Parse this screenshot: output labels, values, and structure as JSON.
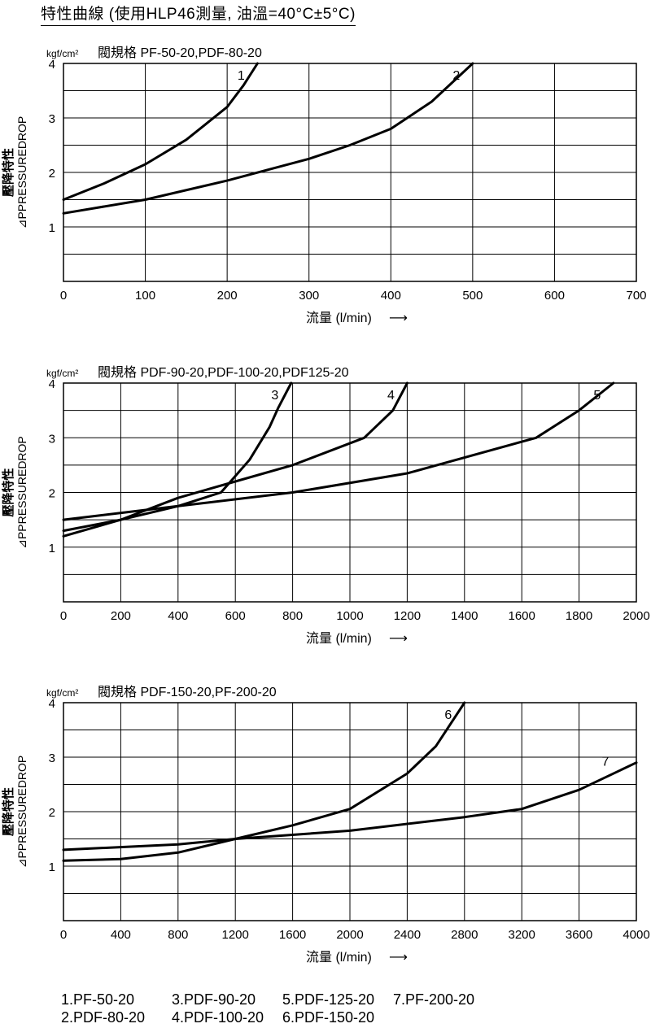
{
  "header": {
    "title": "特性曲線 (使用HLP46測量, 油溫=40°C±5°C)"
  },
  "common": {
    "unit_label": "kgf/cm²",
    "ylabel_line1": "壓降特性",
    "ylabel_line2": "⊿PPRESSUREDROP",
    "xlabel": "流量 (l/min)",
    "xlabel_arrow": "⟶",
    "line_color": "#000000",
    "grid_color": "#000000"
  },
  "chart_data": [
    {
      "type": "line",
      "subtitle": "閥規格 PF-50-20,PDF-80-20",
      "xlim": [
        0,
        700
      ],
      "ylim": [
        0,
        4
      ],
      "xticks": [
        0,
        100,
        200,
        300,
        400,
        500,
        600,
        700
      ],
      "yticks": [
        1,
        2,
        3,
        4
      ],
      "grid": true,
      "series": [
        {
          "name": "1",
          "x": [
            0,
            50,
            100,
            150,
            200,
            220,
            237
          ],
          "y": [
            1.5,
            1.8,
            2.15,
            2.6,
            3.2,
            3.6,
            4.0
          ]
        },
        {
          "name": "2",
          "x": [
            0,
            100,
            200,
            300,
            350,
            400,
            450,
            500
          ],
          "y": [
            1.25,
            1.5,
            1.85,
            2.25,
            2.5,
            2.8,
            3.3,
            4.0
          ]
        }
      ]
    },
    {
      "type": "line",
      "subtitle": "閥規格 PDF-90-20,PDF-100-20,PDF125-20",
      "xlim": [
        0,
        2000
      ],
      "ylim": [
        0,
        4
      ],
      "xticks": [
        0,
        200,
        400,
        600,
        800,
        1000,
        1200,
        1400,
        1600,
        1800,
        2000
      ],
      "yticks": [
        1,
        2,
        3,
        4
      ],
      "grid": true,
      "series": [
        {
          "name": "3",
          "x": [
            0,
            200,
            400,
            550,
            650,
            720,
            750,
            795
          ],
          "y": [
            1.2,
            1.5,
            1.75,
            2.0,
            2.6,
            3.2,
            3.55,
            4.0
          ]
        },
        {
          "name": "4",
          "x": [
            0,
            200,
            400,
            600,
            800,
            1050,
            1150,
            1200
          ],
          "y": [
            1.3,
            1.5,
            1.9,
            2.2,
            2.5,
            3.0,
            3.5,
            4.0
          ]
        },
        {
          "name": "5",
          "x": [
            0,
            400,
            800,
            1200,
            1650,
            1800,
            1920
          ],
          "y": [
            1.5,
            1.75,
            2.0,
            2.35,
            3.0,
            3.5,
            4.0
          ]
        }
      ]
    },
    {
      "type": "line",
      "subtitle": "閥規格 PDF-150-20,PF-200-20",
      "xlim": [
        0,
        4000
      ],
      "ylim": [
        0,
        4
      ],
      "xticks": [
        0,
        400,
        800,
        1200,
        1600,
        2000,
        2400,
        2800,
        3200,
        3600,
        4000
      ],
      "yticks": [
        1,
        2,
        3,
        4
      ],
      "grid": true,
      "series": [
        {
          "name": "6",
          "x": [
            0,
            400,
            800,
            1200,
            1600,
            2000,
            2400,
            2600,
            2800
          ],
          "y": [
            1.1,
            1.13,
            1.25,
            1.5,
            1.75,
            2.05,
            2.7,
            3.2,
            4.0
          ]
        },
        {
          "name": "7",
          "x": [
            0,
            800,
            1200,
            2000,
            2800,
            3200,
            3600,
            4000
          ],
          "y": [
            1.3,
            1.4,
            1.5,
            1.65,
            1.9,
            2.05,
            2.4,
            2.9
          ]
        }
      ]
    }
  ],
  "legend": {
    "rows": [
      [
        "1.PF-50-20",
        "3.PDF-90-20",
        "5.PDF-125-20",
        "7.PF-200-20"
      ],
      [
        "2.PDF-80-20",
        "4.PDF-100-20",
        "6.PDF-150-20"
      ]
    ]
  }
}
